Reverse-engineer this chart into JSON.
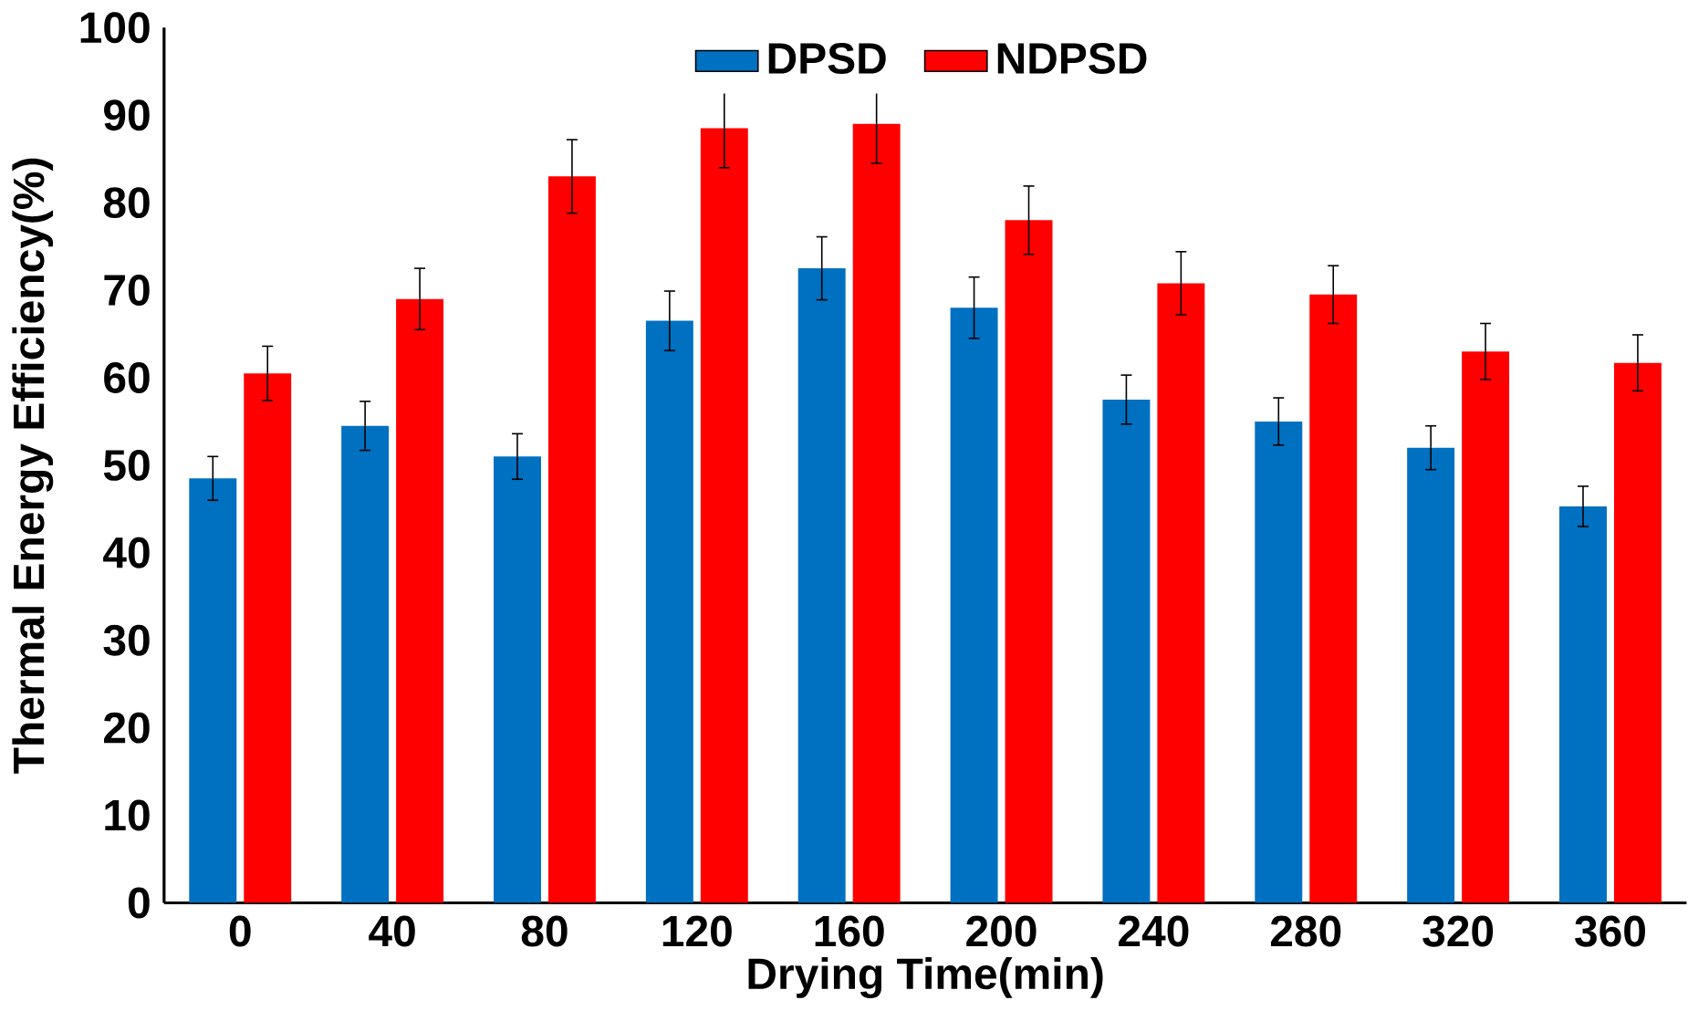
{
  "chart_data": {
    "type": "bar",
    "xlabel": "Drying Time(min)",
    "ylabel": "Thermal Energy Efficiency(%)",
    "categories": [
      "0",
      "40",
      "80",
      "120",
      "160",
      "200",
      "240",
      "280",
      "320",
      "360"
    ],
    "series": [
      {
        "name": "DPSD",
        "color": "#0070c0",
        "values": [
          48.5,
          54.5,
          51,
          66.5,
          72.5,
          68,
          57.5,
          55,
          52,
          45.3
        ],
        "errors": [
          2.5,
          2.8,
          2.6,
          3.4,
          3.6,
          3.5,
          2.8,
          2.7,
          2.5,
          2.3
        ]
      },
      {
        "name": "NDPSD",
        "color": "#ff0000",
        "values": [
          60.5,
          69,
          83,
          88.5,
          89,
          78,
          70.8,
          69.5,
          63,
          61.7
        ],
        "errors": [
          3.1,
          3.5,
          4.2,
          4.5,
          4.5,
          3.9,
          3.6,
          3.3,
          3.2,
          3.2
        ]
      }
    ],
    "ylim": [
      0,
      100
    ],
    "yticks": [
      0,
      10,
      20,
      30,
      40,
      50,
      60,
      70,
      80,
      90,
      100
    ],
    "legend": "top",
    "grid": false
  }
}
